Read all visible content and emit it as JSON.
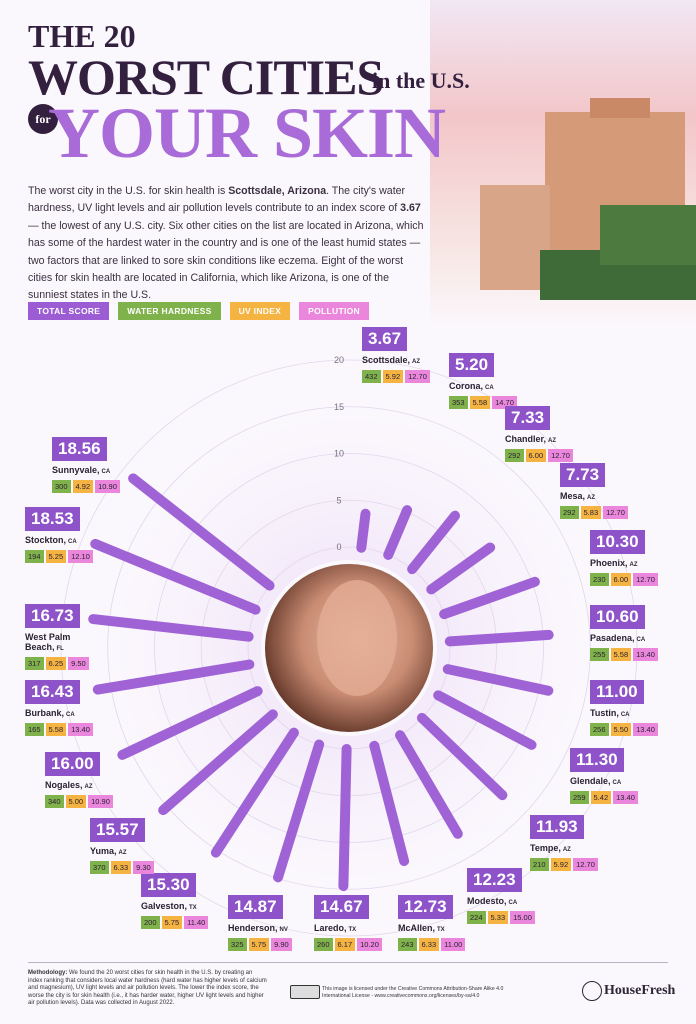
{
  "header": {
    "title": [
      "THE 20",
      "WORST CITIES",
      "in the U.S.",
      "for",
      "YOUR SKIN"
    ],
    "description": [
      {
        "text": "The worst city in the U.S. for skin health is "
      },
      {
        "text": "Scottsdale, Arizona",
        "bold": true
      },
      {
        "text": ". The city's water hardness, UV light levels and air pollution levels contribute to an index score of "
      },
      {
        "text": "3.67",
        "bold": true
      },
      {
        "text": " — the lowest of any U.S. city. Six other cities on the list are located in Arizona, which has some of the hardest water in the country and is one of the least humid states — two factors that are linked to sore skin conditions like eczema. Eight of the worst cities for skin health are located in California, which like Arizona, is one of the sunniest states in the U.S."
      }
    ]
  },
  "chart_data": {
    "type": "radial-bar",
    "categories": [
      "Scottsdale,",
      "Corona,",
      "Chandler,",
      "Mesa,",
      "Phoenix,",
      "Pasadena,",
      "Tustin,",
      "Glendale,",
      "Tempe,",
      "Modesto,",
      "McAllen,",
      "Laredo,",
      "Henderson,",
      "Galveston,",
      "Yuma,",
      "Nogales,",
      "Burbank,",
      "West Palm Beach,",
      "Stockton,",
      "Sunnyvale,"
    ],
    "states": [
      "AZ",
      "CA",
      "AZ",
      "AZ",
      "AZ",
      "CA",
      "CA",
      "CA",
      "AZ",
      "CA",
      "TX",
      "TX",
      "NV",
      "TX",
      "AZ",
      "AZ",
      "CA",
      "FL",
      "CA",
      "CA"
    ],
    "value_name": "TOTAL SCORE",
    "color": "#9c5cd4",
    "values": [
      3.67,
      5.2,
      7.33,
      7.73,
      10.3,
      10.6,
      11,
      11.3,
      11.93,
      12.23,
      12.73,
      14.67,
      14.87,
      15.3,
      15.57,
      16,
      16.43,
      16.73,
      18.53,
      18.56
    ],
    "value_labels": [
      "3.67",
      "5.20",
      "7.33",
      "7.73",
      "10.30",
      "10.60",
      "11.00",
      "11.30",
      "11.93",
      "12.23",
      "12.73",
      "14.67",
      "14.87",
      "15.30",
      "15.57",
      "16.00",
      "16.43",
      "16.73",
      "18.53",
      "18.56"
    ],
    "series": [
      {
        "name": "WATER HARDNESS",
        "color": "#7fb24a",
        "values": [
          432,
          353,
          292,
          292,
          230,
          255,
          256,
          259,
          210,
          224,
          243,
          260,
          325,
          200,
          370,
          340,
          165,
          317,
          194,
          300
        ]
      },
      {
        "name": "UV INDEX",
        "color": "#f5b342",
        "values": [
          5.92,
          5.58,
          6,
          5.83,
          6,
          5.58,
          5.5,
          5.42,
          5.92,
          5.33,
          6.33,
          6.17,
          5.75,
          5.75,
          6.33,
          5,
          5.58,
          6.25,
          5.25,
          4.92
        ],
        "value_labels": [
          "5.92",
          "5.58",
          "6.00",
          "5.83",
          "6.00",
          "5.58",
          "5.50",
          "5.42",
          "5.92",
          "5.33",
          "6.33",
          "6.17",
          "5.75",
          "5.75",
          "6.33",
          "5.00",
          "5.58",
          "6.25",
          "5.25",
          "4.92"
        ]
      },
      {
        "name": "POLLUTION",
        "color": "#ea86dc",
        "values": [
          12.7,
          14.7,
          12.7,
          12.7,
          12.7,
          13.4,
          13.4,
          13.4,
          12.7,
          15,
          11,
          10.2,
          9.9,
          11.4,
          9.3,
          10.9,
          13.4,
          9.5,
          12.1,
          10.9
        ],
        "value_labels": [
          "12.70",
          "14.70",
          "12.70",
          "12.70",
          "12.70",
          "13.40",
          "13.40",
          "13.40",
          "12.70",
          "15.00",
          "11.00",
          "10.20",
          "9.90",
          "11.40",
          "9.30",
          "10.90",
          "13.40",
          "9.50",
          "12.10",
          "10.90"
        ]
      }
    ],
    "ylim": [
      0,
      20
    ],
    "yticks": [
      0,
      5,
      10,
      15,
      20
    ],
    "grid": true
  },
  "footer": {
    "methodology_label": "Methodology:",
    "methodology": " We found the 20 worst cities for skin health in the U.S. by creating an index ranking that considers local water hardness (hard water has higher levels of calcium and magnesium), UV light levels and air pollution levels. The lower the index score, the worse the city is for skin health (i.e., it has harder water, higher UV light levels and higher air pollution levels). Data was collected in August 2022.",
    "license": "This image is licensed under the Creative Commons Attribution-Share Alike 4.0 International License - www.creativecommons.org/licenses/by-sa/4.0",
    "brand": "HouseFresh"
  }
}
